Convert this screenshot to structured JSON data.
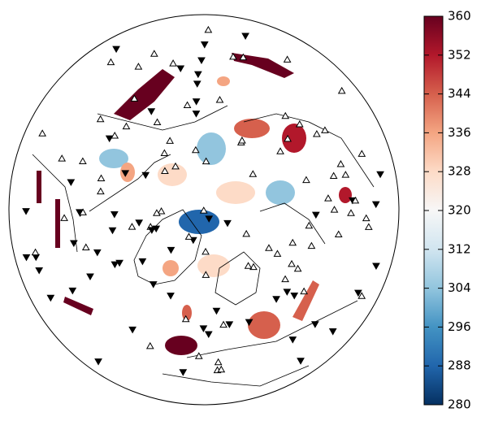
{
  "colorbar": {
    "range": [
      280,
      360
    ],
    "ticks": [
      280,
      288,
      296,
      304,
      312,
      320,
      328,
      336,
      344,
      352,
      360
    ]
  }
}
